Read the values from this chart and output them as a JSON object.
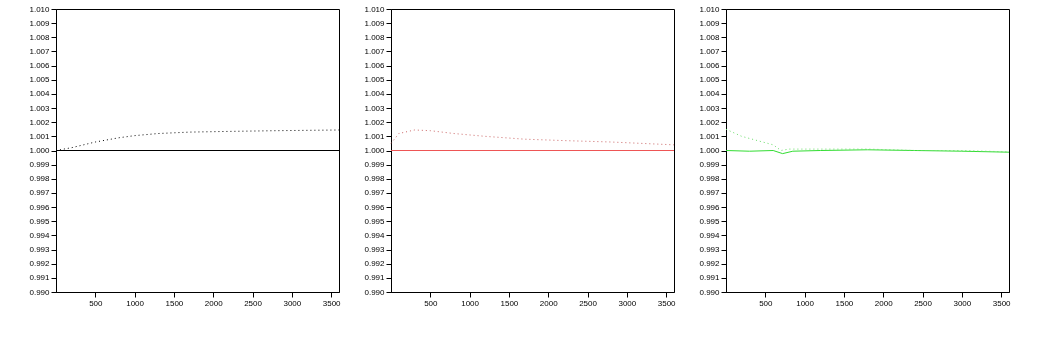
{
  "chart_data": [
    {
      "type": "line",
      "xlim": [
        0,
        3600
      ],
      "xticks": [
        500,
        1000,
        1500,
        2000,
        2500,
        3000,
        3500
      ],
      "ylim": [
        0.99,
        1.01
      ],
      "yticks": [
        {
          "value": 0.99,
          "label": "0.990"
        },
        0.991,
        0.992,
        0.993,
        0.994,
        0.995,
        0.996,
        0.997,
        0.998,
        0.999,
        {
          "value": 1,
          "label": "1.000"
        },
        1.001,
        1.002,
        1.003,
        1.004,
        1.005,
        1.006,
        1.007,
        1.008,
        1.009,
        {
          "value": 1.01,
          "label": "1.010"
        }
      ],
      "grid": false,
      "series": [
        {
          "color": "#000000",
          "line_style": "solid",
          "x": [
            0,
            3600
          ],
          "values": [
            1.0,
            1.0
          ]
        },
        {
          "color": "#000000",
          "line_style": "dotted",
          "x": [
            0,
            200,
            500,
            800,
            1000,
            1300,
            1700,
            2200,
            2800,
            3600
          ],
          "values": [
            1.0,
            1.0002,
            1.0006,
            1.0009,
            1.00105,
            1.0012,
            1.0013,
            1.00135,
            1.0014,
            1.00145
          ]
        }
      ]
    },
    {
      "type": "line",
      "xlim": [
        0,
        3600
      ],
      "xticks": [
        500,
        1000,
        1500,
        2000,
        2500,
        3000,
        3500
      ],
      "ylim": [
        0.99,
        1.01
      ],
      "yticks": [
        {
          "value": 0.99,
          "label": "0.990"
        },
        0.991,
        0.992,
        0.993,
        0.994,
        0.995,
        0.996,
        0.997,
        0.998,
        0.999,
        {
          "value": 1,
          "label": "1.000"
        },
        1.001,
        1.002,
        1.003,
        1.004,
        1.005,
        1.006,
        1.007,
        1.008,
        1.009,
        {
          "value": 1.01,
          "label": "1.010"
        }
      ],
      "grid": false,
      "series": [
        {
          "color": "#ee5555",
          "line_style": "solid",
          "x": [
            0,
            3600
          ],
          "values": [
            1.0,
            1.0
          ]
        },
        {
          "color": "#cc6666",
          "line_style": "dotted",
          "x": [
            0,
            100,
            300,
            500,
            800,
            1200,
            1700,
            2200,
            2800,
            3600
          ],
          "values": [
            1.0005,
            1.0012,
            1.00145,
            1.0014,
            1.0012,
            1.001,
            1.0008,
            1.0007,
            1.0006,
            1.0004
          ]
        }
      ]
    },
    {
      "type": "line",
      "xlim": [
        0,
        3600
      ],
      "xticks": [
        500,
        1000,
        1500,
        2000,
        2500,
        3000,
        3500
      ],
      "ylim": [
        0.99,
        1.01
      ],
      "yticks": [
        {
          "value": 0.99,
          "label": "0.990"
        },
        0.991,
        0.992,
        0.993,
        0.994,
        0.995,
        0.996,
        0.997,
        0.998,
        0.999,
        {
          "value": 1,
          "label": "1.000"
        },
        1.001,
        1.002,
        1.003,
        1.004,
        1.005,
        1.006,
        1.007,
        1.008,
        1.009,
        {
          "value": 1.01,
          "label": "1.010"
        }
      ],
      "grid": false,
      "series": [
        {
          "color": "#33dd33",
          "line_style": "solid",
          "x": [
            0,
            300,
            600,
            720,
            850,
            1200,
            1800,
            2400,
            3000,
            3600
          ],
          "values": [
            1.0,
            0.99995,
            1.0,
            0.99978,
            0.99995,
            1.0,
            1.00005,
            1.0,
            0.99995,
            0.99988
          ]
        },
        {
          "color": "#66dd66",
          "line_style": "dotted",
          "x": [
            0,
            200,
            400,
            600,
            700,
            800,
            1200,
            1800,
            2400,
            3000,
            3600
          ],
          "values": [
            1.0015,
            1.001,
            1.0007,
            1.0004,
            1.0,
            1.0001,
            1.0001,
            1.0001,
            1.0,
            1.0,
            0.9999
          ]
        }
      ]
    }
  ]
}
